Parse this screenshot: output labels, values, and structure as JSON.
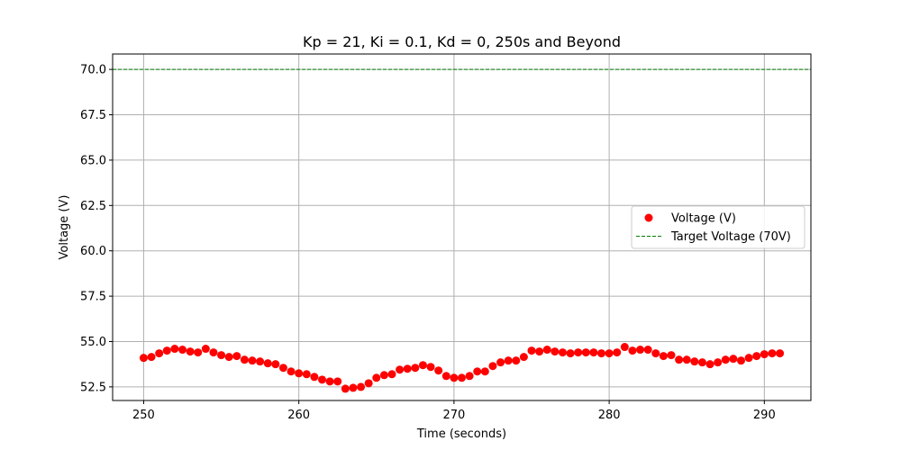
{
  "chart_data": {
    "type": "scatter",
    "title": "Kp = 21, Ki = 0.1, Kd = 0, 250s and Beyond",
    "xlabel": "Time (seconds)",
    "ylabel": "Voltage (V)",
    "xlim": [
      248,
      293
    ],
    "ylim": [
      51.75,
      70.85
    ],
    "xticks": [
      250,
      260,
      270,
      280,
      290
    ],
    "yticks": [
      52.5,
      55.0,
      57.5,
      60.0,
      62.5,
      65.0,
      67.5,
      70.0
    ],
    "ytick_labels": [
      "52.5",
      "55.0",
      "57.5",
      "60.0",
      "62.5",
      "65.0",
      "67.5",
      "70.0"
    ],
    "grid": true,
    "legend_position": "center-right",
    "colors": {
      "voltage": "#ff0000",
      "target": "#008000",
      "grid": "#b0b0b0"
    },
    "series": [
      {
        "name": "Voltage (V)",
        "kind": "scatter",
        "x": [
          250.0,
          250.5,
          251.0,
          251.5,
          252.0,
          252.5,
          253.0,
          253.5,
          254.0,
          254.5,
          255.0,
          255.5,
          256.0,
          256.5,
          257.0,
          257.5,
          258.0,
          258.5,
          259.0,
          259.5,
          260.0,
          260.5,
          261.0,
          261.5,
          262.0,
          262.5,
          263.0,
          263.5,
          264.0,
          264.5,
          265.0,
          265.5,
          266.0,
          266.5,
          267.0,
          267.5,
          268.0,
          268.5,
          269.0,
          269.5,
          270.0,
          270.5,
          271.0,
          271.5,
          272.0,
          272.5,
          273.0,
          273.5,
          274.0,
          274.5,
          275.0,
          275.5,
          276.0,
          276.5,
          277.0,
          277.5,
          278.0,
          278.5,
          279.0,
          279.5,
          280.0,
          280.5,
          281.0,
          281.5,
          282.0,
          282.5,
          283.0,
          283.5,
          284.0,
          284.5,
          285.0,
          285.5,
          286.0,
          286.5,
          287.0,
          287.5,
          288.0,
          288.5,
          289.0,
          289.5,
          290.0,
          290.5,
          291.0
        ],
        "y": [
          54.1,
          54.15,
          54.35,
          54.5,
          54.6,
          54.55,
          54.45,
          54.4,
          54.6,
          54.4,
          54.25,
          54.15,
          54.2,
          54.0,
          53.95,
          53.9,
          53.8,
          53.75,
          53.55,
          53.35,
          53.25,
          53.2,
          53.05,
          52.9,
          52.8,
          52.8,
          52.4,
          52.45,
          52.5,
          52.7,
          53.0,
          53.15,
          53.2,
          53.45,
          53.5,
          53.55,
          53.7,
          53.6,
          53.4,
          53.1,
          53.0,
          53.0,
          53.1,
          53.35,
          53.35,
          53.65,
          53.85,
          53.95,
          53.95,
          54.15,
          54.5,
          54.45,
          54.55,
          54.45,
          54.4,
          54.35,
          54.4,
          54.4,
          54.4,
          54.35,
          54.35,
          54.4,
          54.7,
          54.5,
          54.55,
          54.55,
          54.35,
          54.2,
          54.25,
          54.0,
          54.0,
          53.9,
          53.85,
          53.75,
          53.85,
          54.0,
          54.05,
          53.95,
          54.1,
          54.2,
          54.3,
          54.35,
          54.35
        ]
      },
      {
        "name": "Target Voltage (70V)",
        "kind": "hline",
        "y": 70.0
      }
    ]
  }
}
